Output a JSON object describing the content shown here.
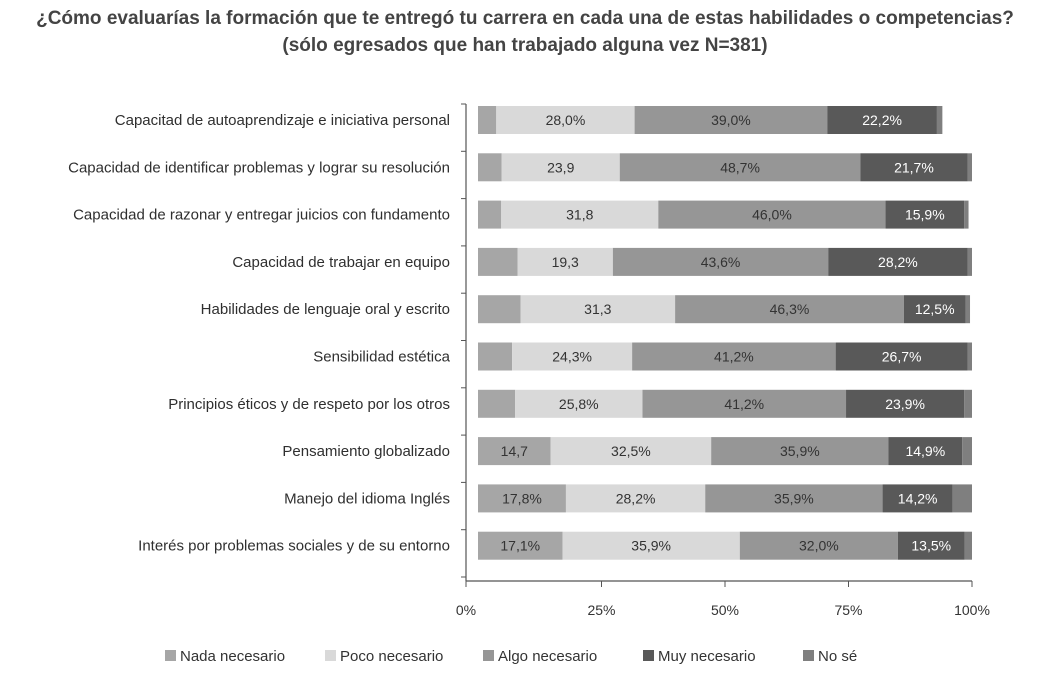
{
  "chart_data": {
    "type": "bar",
    "orientation": "horizontal",
    "stacked": true,
    "title": "¿Cómo evaluarías la formación que te entregó tu carrera en cada una de estas habilidades o competencias?",
    "subtitle": "(sólo egresados que han trabajado alguna vez N=381)",
    "categories": [
      "Capacitad de autoaprendizaje e iniciativa personal",
      "Capacidad de identificar problemas y lograr su resolución",
      "Capacidad de razonar y entregar juicios con fundamento",
      "Capacidad de trabajar en equipo",
      "Habilidades de lenguaje oral y escrito",
      "Sensibilidad estética",
      "Principios éticos y de respeto por los otros",
      "Pensamiento globalizado",
      "Manejo del idioma Inglés",
      "Interés por problemas sociales y de su entorno"
    ],
    "series": [
      {
        "name": "Nada necesario",
        "color": "#a6a6a6",
        "values": [
          3.7,
          4.8,
          4.7,
          8.0,
          8.6,
          6.9,
          7.5,
          14.7,
          17.8,
          17.1
        ],
        "labels": [
          "",
          "",
          "",
          "",
          "",
          "",
          "",
          "14,7",
          "17,8%",
          "17,1%"
        ]
      },
      {
        "name": "Poco necesario",
        "color": "#d9d9d9",
        "values": [
          28.0,
          23.9,
          31.8,
          19.3,
          31.3,
          24.3,
          25.8,
          32.5,
          28.2,
          35.9
        ],
        "labels": [
          "28,0%",
          "23,9",
          "31,8",
          "19,3",
          "31,3",
          "24,3%",
          "25,8%",
          "32,5%",
          "28,2%",
          "35,9%"
        ]
      },
      {
        "name": "Algo necesario",
        "color": "#969696",
        "values": [
          39.0,
          48.7,
          46.0,
          43.6,
          46.3,
          41.2,
          41.2,
          35.9,
          35.9,
          32.0
        ],
        "labels": [
          "39,0%",
          "48,7%",
          "46,0%",
          "43,6%",
          "46,3%",
          "41,2%",
          "41,2%",
          "35,9%",
          "35,9%",
          "32,0%"
        ]
      },
      {
        "name": "Muy necesario",
        "color": "#595959",
        "values": [
          22.2,
          21.7,
          15.9,
          28.2,
          12.5,
          26.7,
          23.9,
          14.9,
          14.2,
          13.5
        ],
        "labels": [
          "22,2%",
          "21,7%",
          "15,9%",
          "28,2%",
          "12,5%",
          "26,7%",
          "23,9%",
          "14,9%",
          "14,2%",
          "13,5%"
        ]
      },
      {
        "name": "No sé",
        "color": "#7f7f7f",
        "values": [
          1.1,
          0.9,
          0.9,
          0.9,
          0.9,
          0.9,
          1.6,
          2.0,
          3.9,
          1.5
        ],
        "labels": [
          "",
          "",
          "",
          "",
          "",
          "",
          "",
          "",
          "",
          ""
        ]
      }
    ],
    "xlim": [
      0,
      100
    ],
    "xticks": [
      "0%",
      "25%",
      "50%",
      "75%",
      "100%"
    ],
    "xtick_values": [
      0,
      25,
      50,
      75,
      100
    ],
    "legend_position": "bottom",
    "grid": false
  }
}
